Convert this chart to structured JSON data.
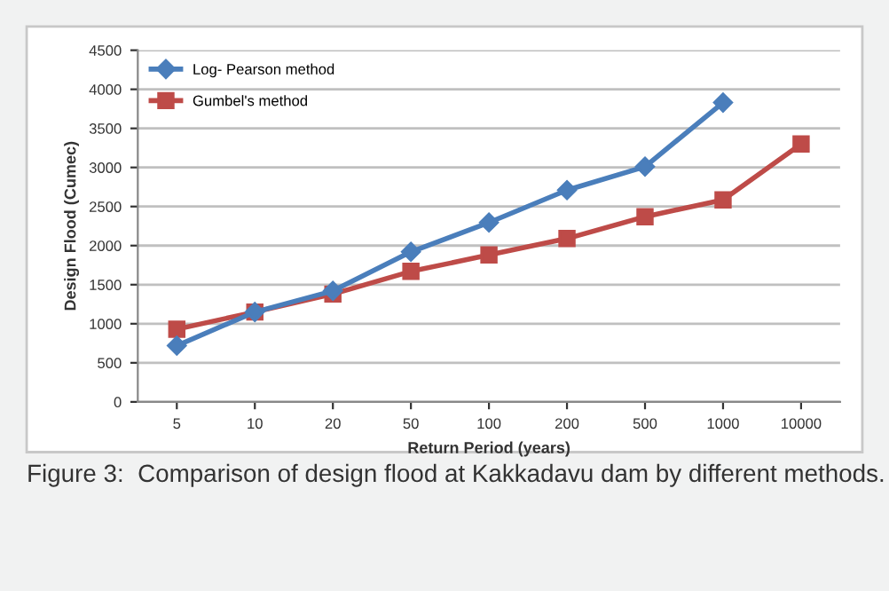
{
  "chart_data": {
    "type": "line",
    "xlabel": "Return Period (years)",
    "ylabel": "Design Flood (Cumec)",
    "categories": [
      "5",
      "10",
      "20",
      "50",
      "100",
      "200",
      "500",
      "1000",
      "10000"
    ],
    "series": [
      {
        "name": "Log- Pearson method",
        "color": "#4a7ebb",
        "marker": "diamond",
        "values": [
          720,
          1150,
          1420,
          1920,
          2295,
          2710,
          3010,
          3830,
          null
        ]
      },
      {
        "name": "Gumbel's method",
        "color": "#be4b48",
        "marker": "square",
        "values": [
          930,
          1150,
          1380,
          1670,
          1880,
          2090,
          2370,
          2585,
          3300
        ]
      }
    ],
    "ylim": [
      0,
      4500
    ],
    "yticks": [
      0,
      500,
      1000,
      1500,
      2000,
      2500,
      3000,
      3500,
      4000,
      4500
    ],
    "grid": "y",
    "legend": "top left",
    "annotations": [
      "Figure 3:  Comparison of design flood at Kakkadavu dam by different methods."
    ]
  }
}
